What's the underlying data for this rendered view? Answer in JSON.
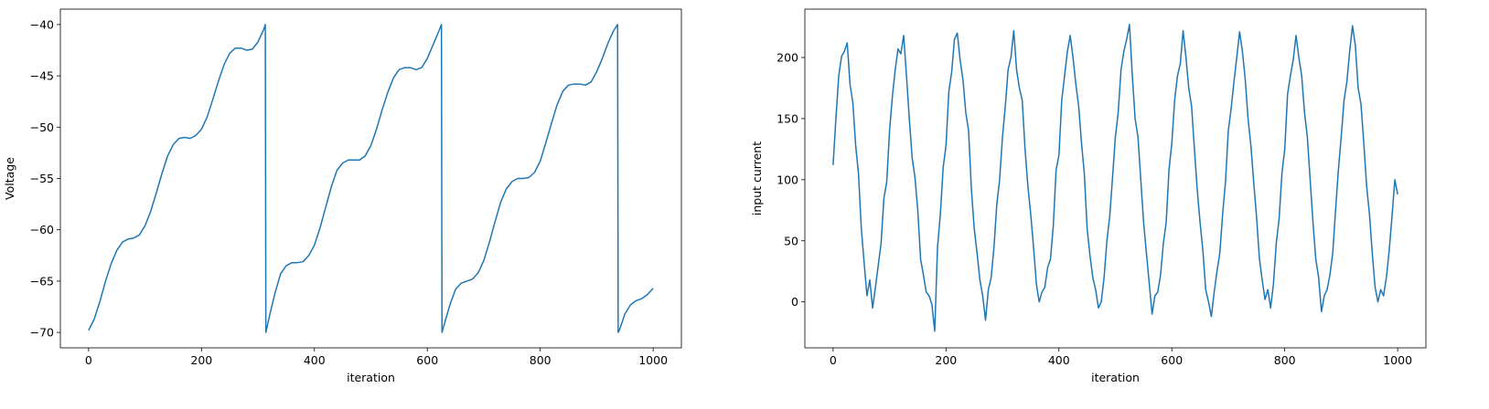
{
  "chart_data": [
    {
      "type": "line",
      "color": "#1f77b4",
      "xlabel": "iteration",
      "ylabel": "Voltage",
      "xlim": [
        -50,
        1050
      ],
      "ylim": [
        -71.5,
        -38.5
      ],
      "xticks": [
        0,
        200,
        400,
        600,
        800,
        1000
      ],
      "yticks": [
        {
          "value": -70,
          "label": "−70"
        },
        {
          "value": -65,
          "label": "−65"
        },
        {
          "value": -60,
          "label": "−60"
        },
        {
          "value": -55,
          "label": "−55"
        },
        {
          "value": -50,
          "label": "−50"
        },
        {
          "value": -45,
          "label": "−45"
        },
        {
          "value": -40,
          "label": "−40"
        }
      ],
      "x": [
        0,
        10,
        20,
        30,
        40,
        50,
        60,
        70,
        80,
        90,
        100,
        110,
        120,
        130,
        140,
        150,
        160,
        170,
        180,
        190,
        200,
        210,
        220,
        230,
        240,
        250,
        260,
        270,
        280,
        290,
        300,
        310,
        313,
        314,
        320,
        330,
        340,
        350,
        360,
        370,
        380,
        390,
        400,
        410,
        420,
        430,
        440,
        450,
        460,
        470,
        480,
        490,
        500,
        510,
        520,
        530,
        540,
        550,
        560,
        570,
        580,
        590,
        600,
        610,
        620,
        625,
        626,
        630,
        640,
        650,
        660,
        670,
        680,
        690,
        700,
        710,
        720,
        730,
        740,
        750,
        760,
        770,
        780,
        790,
        800,
        810,
        820,
        830,
        840,
        850,
        860,
        870,
        880,
        890,
        900,
        910,
        920,
        930,
        937,
        938,
        940,
        950,
        960,
        970,
        980,
        990,
        1000
      ],
      "values": [
        -69.8,
        -68.7,
        -67,
        -65,
        -63.3,
        -62,
        -61.2,
        -60.9,
        -60.8,
        -60.5,
        -59.6,
        -58.2,
        -56.4,
        -54.5,
        -52.8,
        -51.7,
        -51.1,
        -51,
        -51.1,
        -50.8,
        -50.2,
        -49,
        -47.3,
        -45.5,
        -43.9,
        -42.8,
        -42.3,
        -42.3,
        -42.5,
        -42.4,
        -41.7,
        -40.5,
        -40,
        -70,
        -68.5,
        -66.2,
        -64.3,
        -63.5,
        -63.2,
        -63.2,
        -63.1,
        -62.5,
        -61.5,
        -59.8,
        -57.8,
        -55.8,
        -54.2,
        -53.5,
        -53.2,
        -53.2,
        -53.2,
        -52.8,
        -51.8,
        -50.2,
        -48.3,
        -46.6,
        -45.2,
        -44.4,
        -44.2,
        -44.2,
        -44.4,
        -44.2,
        -43.3,
        -42,
        -40.7,
        -40,
        -70,
        -69.2,
        -67.3,
        -65.8,
        -65.2,
        -65,
        -64.8,
        -64.2,
        -63,
        -61.2,
        -59.2,
        -57.3,
        -56,
        -55.3,
        -55,
        -55,
        -54.9,
        -54.4,
        -53.3,
        -51.5,
        -49.6,
        -47.8,
        -46.5,
        -45.9,
        -45.8,
        -45.8,
        -45.9,
        -45.6,
        -44.6,
        -43.3,
        -41.8,
        -40.6,
        -40,
        -70,
        -69.8,
        -68.2,
        -67.3,
        -66.9,
        -66.7,
        -66.3,
        -65.7
      ]
    },
    {
      "type": "line",
      "color": "#1f77b4",
      "xlabel": "iteration",
      "ylabel": "input current",
      "xlim": [
        -50,
        1050
      ],
      "ylim": [
        -37.6,
        239.6
      ],
      "xticks": [
        0,
        200,
        400,
        600,
        800,
        1000
      ],
      "yticks": [
        0,
        50,
        100,
        150,
        200
      ],
      "x": [
        0,
        5,
        10,
        15,
        20,
        25,
        30,
        35,
        40,
        45,
        50,
        55,
        60,
        65,
        70,
        75,
        80,
        85,
        90,
        95,
        100,
        105,
        110,
        115,
        120,
        125,
        130,
        135,
        140,
        145,
        150,
        155,
        160,
        165,
        170,
        175,
        180,
        185,
        190,
        195,
        200,
        205,
        210,
        215,
        220,
        225,
        230,
        235,
        240,
        245,
        250,
        255,
        260,
        265,
        270,
        275,
        280,
        285,
        290,
        295,
        300,
        305,
        310,
        315,
        320,
        325,
        330,
        335,
        340,
        345,
        350,
        355,
        360,
        365,
        370,
        375,
        380,
        385,
        390,
        395,
        400,
        405,
        410,
        415,
        420,
        425,
        430,
        435,
        440,
        445,
        450,
        455,
        460,
        465,
        470,
        475,
        480,
        485,
        490,
        495,
        500,
        505,
        510,
        515,
        520,
        525,
        530,
        535,
        540,
        545,
        550,
        555,
        560,
        565,
        570,
        575,
        580,
        585,
        590,
        595,
        600,
        605,
        610,
        615,
        620,
        625,
        630,
        635,
        640,
        645,
        650,
        655,
        660,
        665,
        670,
        675,
        680,
        685,
        690,
        695,
        700,
        705,
        710,
        715,
        720,
        725,
        730,
        735,
        740,
        745,
        750,
        755,
        760,
        765,
        770,
        775,
        780,
        785,
        790,
        795,
        800,
        805,
        810,
        815,
        820,
        825,
        830,
        835,
        840,
        845,
        850,
        855,
        860,
        865,
        870,
        875,
        880,
        885,
        890,
        895,
        900,
        905,
        910,
        915,
        920,
        925,
        930,
        935,
        940,
        945,
        950,
        955,
        960,
        965,
        970,
        975,
        980,
        985,
        990,
        995,
        1000
      ],
      "values": [
        112,
        150,
        185,
        201,
        205,
        212,
        178,
        163,
        128,
        105,
        60,
        32,
        5,
        18,
        -5,
        12,
        30,
        48,
        85,
        98,
        140,
        168,
        190,
        207,
        203,
        218,
        185,
        150,
        118,
        102,
        75,
        35,
        22,
        8,
        5,
        -2,
        -24,
        45,
        72,
        110,
        128,
        172,
        188,
        215,
        220,
        198,
        182,
        155,
        140,
        92,
        60,
        40,
        18,
        5,
        -15,
        10,
        20,
        45,
        80,
        100,
        135,
        160,
        190,
        200,
        222,
        190,
        175,
        165,
        125,
        95,
        72,
        45,
        15,
        0,
        8,
        12,
        28,
        35,
        62,
        108,
        120,
        165,
        185,
        205,
        218,
        200,
        178,
        160,
        130,
        105,
        60,
        38,
        20,
        10,
        -5,
        0,
        20,
        50,
        70,
        102,
        135,
        155,
        190,
        205,
        215,
        227,
        185,
        150,
        135,
        100,
        65,
        40,
        15,
        -10,
        5,
        8,
        22,
        48,
        65,
        108,
        130,
        165,
        185,
        195,
        222,
        200,
        175,
        160,
        125,
        92,
        65,
        42,
        10,
        0,
        -12,
        8,
        25,
        40,
        72,
        98,
        140,
        158,
        180,
        200,
        221,
        205,
        182,
        150,
        128,
        98,
        70,
        36,
        18,
        2,
        10,
        -5,
        15,
        48,
        68,
        105,
        125,
        170,
        185,
        198,
        218,
        200,
        185,
        155,
        135,
        100,
        65,
        35,
        20,
        -8,
        5,
        10,
        22,
        40,
        75,
        108,
        135,
        165,
        180,
        205,
        226,
        210,
        175,
        162,
        130,
        95,
        72,
        40,
        12,
        0,
        10,
        5,
        20,
        42,
        70,
        100,
        88
      ]
    }
  ]
}
